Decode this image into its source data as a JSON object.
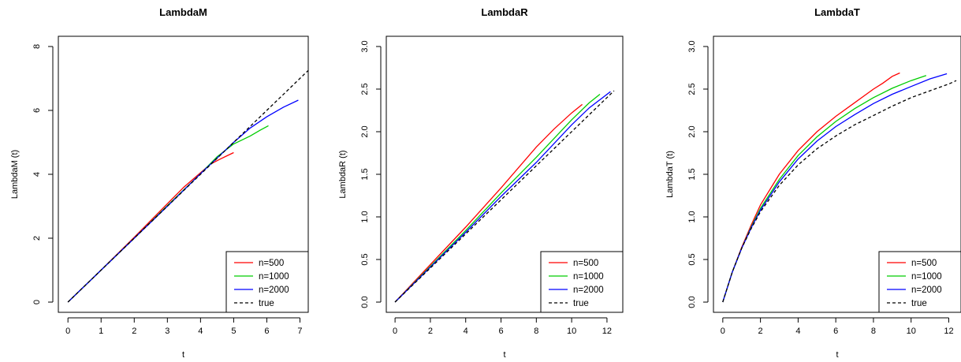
{
  "chart_data": [
    {
      "type": "line",
      "title": "LambdaM",
      "xlabel": "t",
      "ylabel": "LambdaM (t)",
      "xlim": [
        0,
        7.25
      ],
      "ylim": [
        0,
        8
      ],
      "xticks": [
        "0",
        "1",
        "2",
        "3",
        "4",
        "5",
        "6",
        "7"
      ],
      "yticks": [
        "0",
        "2",
        "4",
        "6",
        "8"
      ],
      "series": [
        {
          "name": "n=500",
          "color": "#ff0000",
          "dash": false,
          "x": [
            0,
            1,
            2,
            3,
            3.5,
            4,
            4.3,
            4.6,
            4.8,
            5.0
          ],
          "y": [
            0,
            1.0,
            2.03,
            3.08,
            3.6,
            4.05,
            4.32,
            4.48,
            4.58,
            4.68
          ]
        },
        {
          "name": "n=1000",
          "color": "#00cd00",
          "dash": false,
          "x": [
            0,
            1,
            2,
            3,
            4,
            4.5,
            5.0,
            5.5,
            5.8,
            6.05
          ],
          "y": [
            0,
            1.0,
            2.0,
            3.02,
            4.02,
            4.55,
            4.95,
            5.2,
            5.38,
            5.52
          ]
        },
        {
          "name": "n=2000",
          "color": "#0000ff",
          "dash": false,
          "x": [
            0,
            1,
            2,
            3,
            4,
            5,
            5.5,
            6.0,
            6.5,
            6.95
          ],
          "y": [
            0,
            1.0,
            2.0,
            3.0,
            4.02,
            5.0,
            5.45,
            5.8,
            6.1,
            6.32
          ]
        },
        {
          "name": "true",
          "color": "#000000",
          "dash": true,
          "x": [
            0,
            7.25
          ],
          "y": [
            0,
            7.25
          ]
        }
      ],
      "legend": {
        "position": "bottom-right",
        "entries": [
          "n=500",
          "n=1000",
          "n=2000",
          "true"
        ]
      }
    },
    {
      "type": "line",
      "title": "LambdaR",
      "xlabel": "t",
      "ylabel": "LambdaR (t)",
      "xlim": [
        0,
        12.4
      ],
      "ylim": [
        0,
        3.0
      ],
      "xticks": [
        "0",
        "2",
        "4",
        "6",
        "8",
        "10",
        "12"
      ],
      "yticks": [
        "0.0",
        "0.5",
        "1.0",
        "1.5",
        "2.0",
        "2.5",
        "3.0"
      ],
      "series": [
        {
          "name": "n=500",
          "color": "#ff0000",
          "dash": false,
          "x": [
            0,
            2,
            4,
            6,
            8,
            9,
            10,
            10.6
          ],
          "y": [
            0,
            0.44,
            0.88,
            1.34,
            1.82,
            2.03,
            2.22,
            2.32
          ]
        },
        {
          "name": "n=1000",
          "color": "#00cd00",
          "dash": false,
          "x": [
            0,
            2,
            4,
            6,
            8,
            10,
            11,
            11.6
          ],
          "y": [
            0,
            0.42,
            0.84,
            1.28,
            1.7,
            2.14,
            2.34,
            2.44
          ]
        },
        {
          "name": "n=2000",
          "color": "#0000ff",
          "dash": false,
          "x": [
            0,
            2,
            4,
            6,
            8,
            10,
            11,
            12.2
          ],
          "y": [
            0,
            0.41,
            0.82,
            1.24,
            1.64,
            2.08,
            2.28,
            2.47
          ]
        },
        {
          "name": "true",
          "color": "#000000",
          "dash": true,
          "x": [
            0,
            12.4
          ],
          "y": [
            0,
            2.48
          ]
        }
      ],
      "legend": {
        "position": "bottom-right",
        "entries": [
          "n=500",
          "n=1000",
          "n=2000",
          "true"
        ]
      }
    },
    {
      "type": "line",
      "title": "LambdaT",
      "xlabel": "t",
      "ylabel": "LambdaT (t)",
      "xlim": [
        0,
        12.4
      ],
      "ylim": [
        0,
        3.0
      ],
      "xticks": [
        "0",
        "2",
        "4",
        "6",
        "8",
        "10",
        "12"
      ],
      "yticks": [
        "0.0",
        "0.5",
        "1.0",
        "1.5",
        "2.0",
        "2.5",
        "3.0"
      ],
      "series": [
        {
          "name": "n=500",
          "color": "#ff0000",
          "dash": false,
          "x": [
            0,
            0.5,
            1,
            1.5,
            2,
            3,
            4,
            5,
            6,
            7,
            8,
            8.5,
            9,
            9.4
          ],
          "y": [
            0,
            0.35,
            0.64,
            0.9,
            1.14,
            1.5,
            1.78,
            2.0,
            2.18,
            2.34,
            2.5,
            2.57,
            2.65,
            2.69
          ]
        },
        {
          "name": "n=1000",
          "color": "#00cd00",
          "dash": false,
          "x": [
            0,
            0.5,
            1,
            1.5,
            2,
            3,
            4,
            5,
            6,
            7,
            8,
            9,
            10,
            10.8
          ],
          "y": [
            0,
            0.35,
            0.63,
            0.88,
            1.1,
            1.44,
            1.72,
            1.94,
            2.12,
            2.27,
            2.4,
            2.51,
            2.6,
            2.66
          ]
        },
        {
          "name": "n=2000",
          "color": "#0000ff",
          "dash": false,
          "x": [
            0,
            0.5,
            1,
            1.5,
            2,
            3,
            4,
            5,
            6,
            7,
            8,
            9,
            10,
            11,
            11.9
          ],
          "y": [
            0,
            0.35,
            0.63,
            0.87,
            1.08,
            1.41,
            1.68,
            1.89,
            2.06,
            2.2,
            2.33,
            2.44,
            2.53,
            2.62,
            2.68
          ]
        },
        {
          "name": "true",
          "color": "#000000",
          "dash": true,
          "x": [
            0,
            0.5,
            1,
            1.5,
            2,
            3,
            4,
            5,
            6,
            7,
            8,
            9,
            10,
            11,
            12,
            12.4
          ],
          "y": [
            0,
            0.35,
            0.63,
            0.86,
            1.06,
            1.37,
            1.61,
            1.8,
            1.95,
            2.08,
            2.19,
            2.3,
            2.4,
            2.48,
            2.56,
            2.6
          ]
        }
      ],
      "legend": {
        "position": "bottom-right",
        "entries": [
          "n=500",
          "n=1000",
          "n=2000",
          "true"
        ]
      }
    }
  ]
}
